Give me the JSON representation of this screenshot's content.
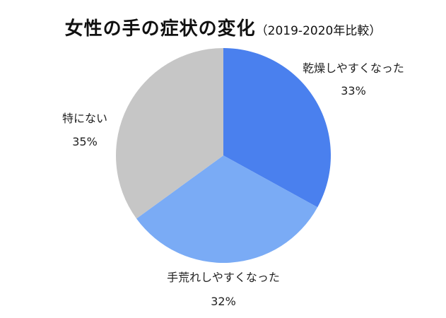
{
  "chart_data": {
    "type": "pie",
    "title": "女性の手の症状の変化",
    "subtitle": "（2019-2020年比較）",
    "categories": [
      "乾燥しやすくなった",
      "手荒れしやすくなった",
      "特にない"
    ],
    "values": [
      33,
      32,
      35
    ],
    "value_labels": [
      "33%",
      "32%",
      "35%"
    ],
    "colors": [
      "#4a80ee",
      "#7aabf5",
      "#c6c6c6"
    ],
    "start_angle_deg": 0,
    "direction": "clockwise"
  }
}
